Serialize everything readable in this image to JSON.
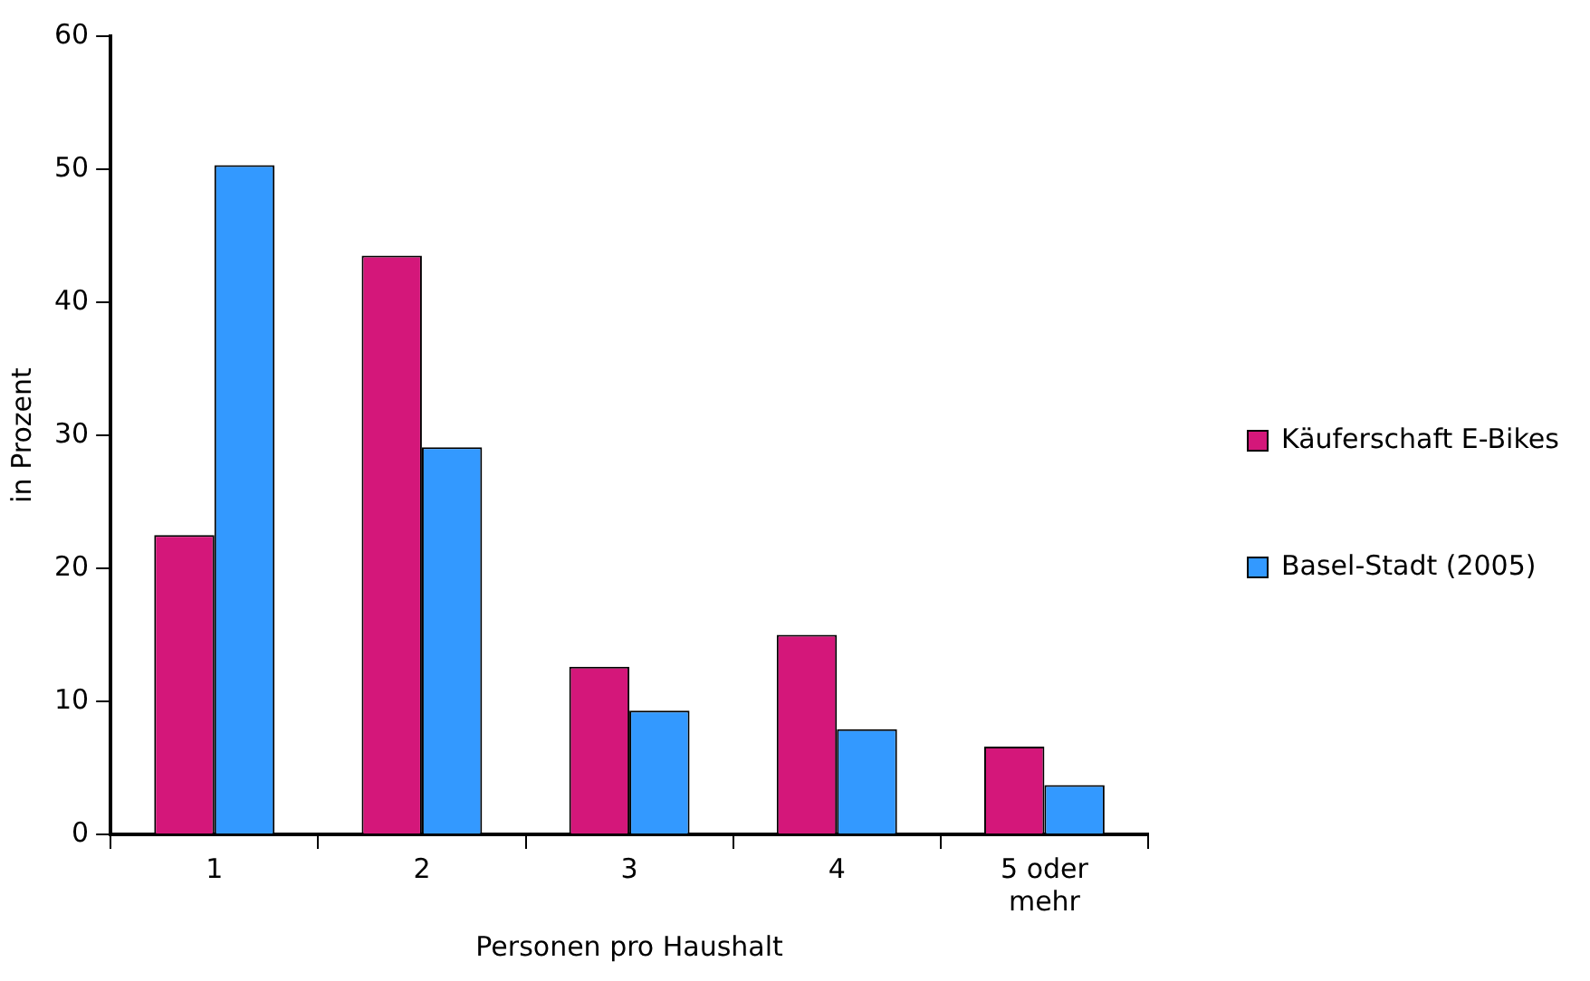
{
  "chart_data": {
    "type": "bar",
    "xlabel": "Personen pro Haushalt",
    "ylabel": "in Prozent",
    "categories": [
      "1",
      "2",
      "3",
      "4",
      "5 oder mehr"
    ],
    "series": [
      {
        "name": "Käuferschaft E-Bikes",
        "color": "#d4177a",
        "values": [
          22.5,
          43.5,
          12.6,
          15.0,
          6.6
        ]
      },
      {
        "name": "Basel-Stadt (2005)",
        "color": "#3399ff",
        "values": [
          50.3,
          29.1,
          9.3,
          7.9,
          3.7
        ]
      }
    ],
    "ylim": [
      0,
      60
    ],
    "yticks": [
      0,
      10,
      20,
      30,
      40,
      50,
      60
    ],
    "legend": "right"
  }
}
